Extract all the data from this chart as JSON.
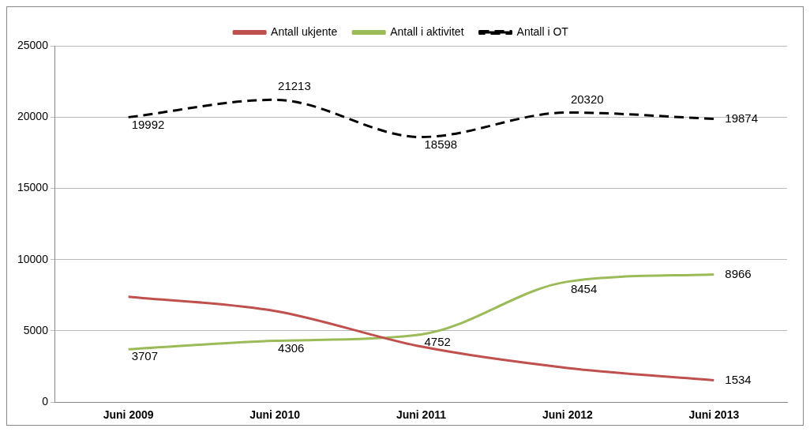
{
  "chart_data": {
    "type": "line",
    "categories": [
      "Juni 2009",
      "Juni 2010",
      "Juni 2011",
      "Juni 2012",
      "Juni 2013"
    ],
    "series": [
      {
        "name": "Antall ukjente",
        "color": "#c0504d",
        "values": [
          7400,
          6400,
          3900,
          2400,
          1534
        ],
        "value_labels": [
          null,
          null,
          null,
          null,
          "1534"
        ]
      },
      {
        "name": "Antall i aktivitet",
        "color": "#9bbb59",
        "values": [
          3707,
          4306,
          4752,
          8454,
          8966
        ],
        "value_labels": [
          "3707",
          "4306",
          "4752",
          "8454",
          "8966"
        ]
      },
      {
        "name": "Antall i OT",
        "color": "#000000",
        "line_style": "dashed",
        "values": [
          19992,
          21213,
          18598,
          20320,
          19874
        ],
        "value_labels": [
          "19992",
          "21213",
          "18598",
          "20320",
          "19874"
        ]
      }
    ],
    "ylim": [
      0,
      25000
    ],
    "yticks": [
      0,
      5000,
      10000,
      15000,
      20000,
      25000
    ],
    "grid": "y",
    "legend": "top",
    "marker": "none"
  }
}
